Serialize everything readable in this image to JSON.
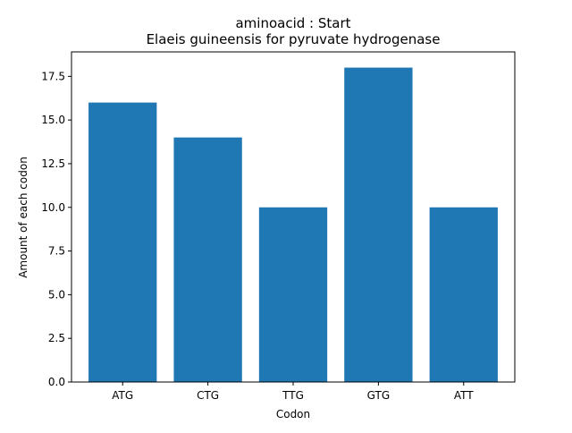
{
  "chart_data": {
    "type": "bar",
    "title": "aminoacid : Start",
    "subtitle": "Elaeis guineensis for pyruvate hydrogenase",
    "xlabel": "Codon",
    "ylabel": "Amount of each codon",
    "categories": [
      "ATG",
      "CTG",
      "TTG",
      "GTG",
      "ATT"
    ],
    "values": [
      16,
      14,
      10,
      18,
      10
    ],
    "ylim": [
      0,
      18.9
    ],
    "yticks": [
      "0.0",
      "2.5",
      "5.0",
      "7.5",
      "10.0",
      "12.5",
      "15.0",
      "17.5"
    ],
    "grid": false,
    "legend": "none",
    "bar_color": "#1f77b4"
  }
}
